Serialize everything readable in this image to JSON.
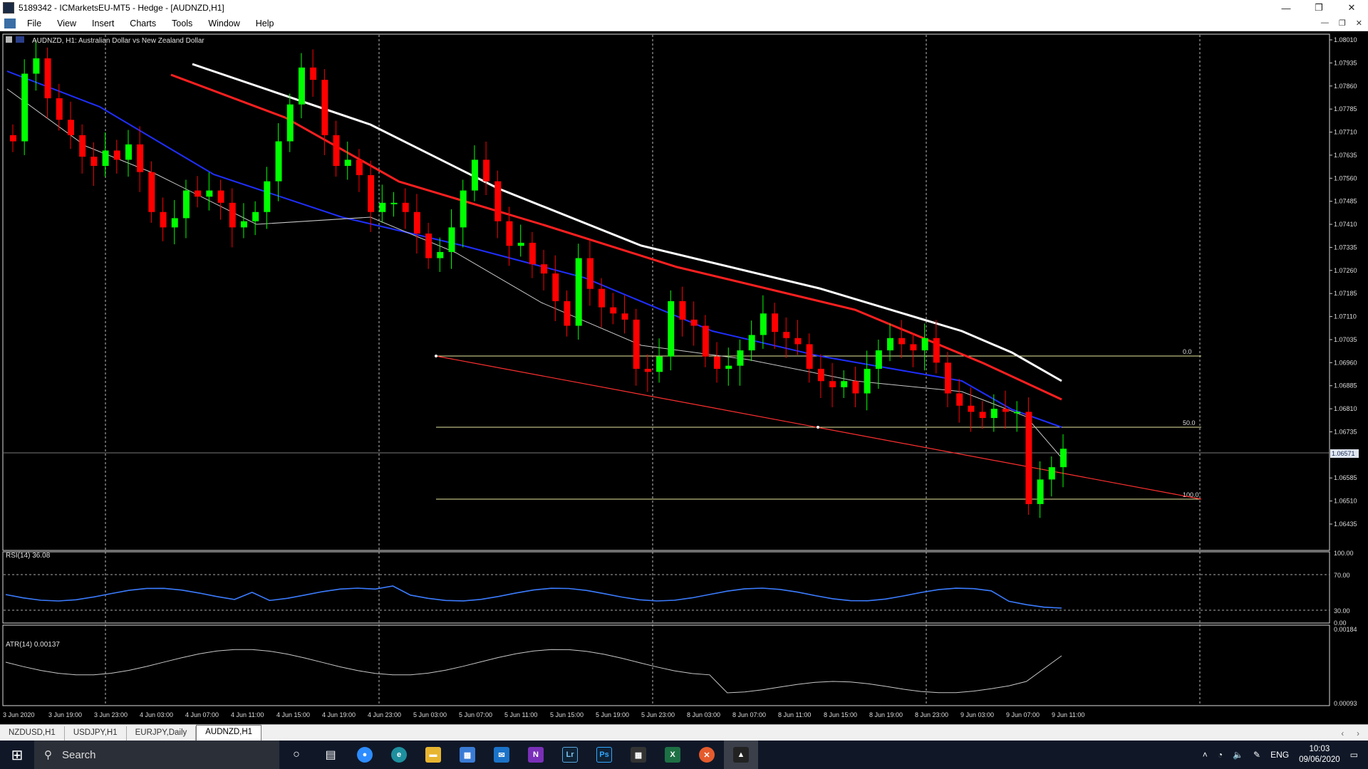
{
  "window": {
    "title": "5189342 - ICMarketsEU-MT5 - Hedge - [AUDNZD,H1]"
  },
  "menu": [
    "File",
    "View",
    "Insert",
    "Charts",
    "Tools",
    "Window",
    "Help"
  ],
  "chart": {
    "header": "AUDNZD, H1:  Australian Dollar vs New Zealand Dollar",
    "current_price_label": "1.06571",
    "price_ticks": [
      "1.08010",
      "1.07935",
      "1.07860",
      "1.07785",
      "1.07710",
      "1.07635",
      "1.07560",
      "1.07485",
      "1.07410",
      "1.07335",
      "1.07260",
      "1.07185",
      "1.07110",
      "1.07035",
      "1.06960",
      "1.06885",
      "1.06810",
      "1.06735",
      "1.06585",
      "1.06510",
      "1.06435"
    ],
    "fib_labels": [
      "0.0",
      "50.0",
      "100.0"
    ],
    "rsi_label": "RSI(14) 36.08",
    "rsi_ticks": [
      "100.00",
      "70.00",
      "30.00",
      "0.00"
    ],
    "atr_label": "ATR(14) 0.00137",
    "atr_ticks": [
      "0.00184",
      "0.00093"
    ],
    "time_labels": [
      "3 Jun 2020",
      "3 Jun 19:00",
      "3 Jun 23:00",
      "4 Jun 03:00",
      "4 Jun 07:00",
      "4 Jun 11:00",
      "4 Jun 15:00",
      "4 Jun 19:00",
      "4 Jun 23:00",
      "5 Jun 03:00",
      "5 Jun 07:00",
      "5 Jun 11:00",
      "5 Jun 15:00",
      "5 Jun 19:00",
      "5 Jun 23:00",
      "8 Jun 03:00",
      "8 Jun 07:00",
      "8 Jun 11:00",
      "8 Jun 15:00",
      "8 Jun 19:00",
      "8 Jun 23:00",
      "9 Jun 03:00",
      "9 Jun 07:00",
      "9 Jun 11:00"
    ],
    "colors": {
      "bull": "#00ff00",
      "bear": "#ff0000",
      "ma_fast": "#c8c8c8",
      "ma_blue": "#1f2fff",
      "ma_red": "#ff2020",
      "ma_white": "#ffffff",
      "rsi_line": "#3b7cff",
      "atr_line": "#c8c8c8",
      "trendline": "#ff3030",
      "fib": "#e8e8a0"
    }
  },
  "tabs": [
    "NZDUSD,H1",
    "USDJPY,H1",
    "EURJPY,Daily",
    "AUDNZD,H1"
  ],
  "active_tab": "AUDNZD,H1",
  "taskbar": {
    "search_placeholder": "Search",
    "lang": "ENG",
    "time": "10:03",
    "date": "09/06/2020"
  }
}
